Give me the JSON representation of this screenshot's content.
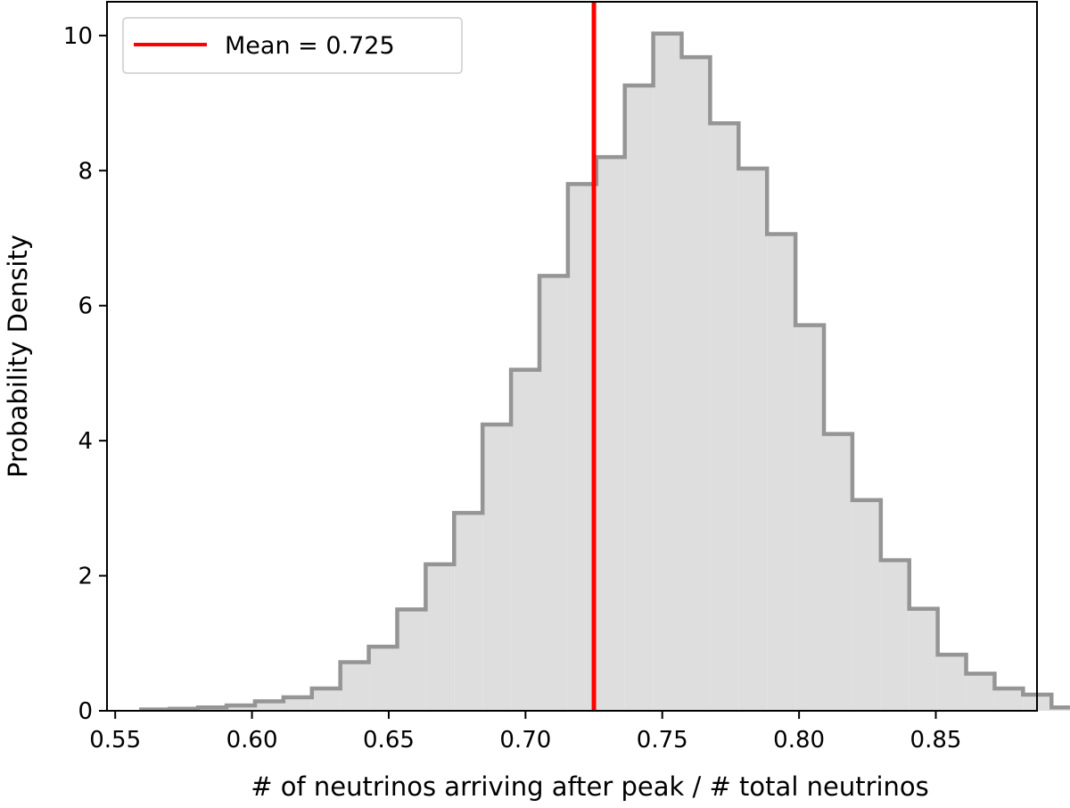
{
  "chart_data": {
    "type": "histogram",
    "title": "",
    "xlabel": "# of neutrinos arriving after peak / # total neutrinos",
    "ylabel": "Probability Density",
    "xlim": [
      0.547,
      0.887
    ],
    "ylim": [
      0,
      10.5
    ],
    "x_ticks": [
      0.55,
      0.6,
      0.65,
      0.7,
      0.75,
      0.8,
      0.85
    ],
    "x_tick_labels": [
      "0.55",
      "0.60",
      "0.65",
      "0.70",
      "0.75",
      "0.80",
      "0.85"
    ],
    "y_ticks": [
      0,
      2,
      4,
      6,
      8,
      10
    ],
    "y_tick_labels": [
      "0",
      "2",
      "4",
      "6",
      "8",
      "10"
    ],
    "bins": {
      "start": 0.5595,
      "width": 0.0104,
      "densities": [
        0.02,
        0.03,
        0.05,
        0.08,
        0.14,
        0.2,
        0.33,
        0.72,
        0.95,
        1.5,
        2.17,
        2.93,
        4.24,
        5.05,
        6.44,
        7.8,
        8.2,
        9.26,
        10.03,
        9.68,
        8.7,
        8.03,
        7.06,
        5.71,
        4.1,
        3.12,
        2.23,
        1.51,
        0.83,
        0.55,
        0.33,
        0.24,
        0.05,
        0.02
      ]
    },
    "mean_line": {
      "x": 0.725,
      "color": "#ff0000"
    },
    "legend": {
      "position": "top-left",
      "entries": [
        {
          "label": "Mean = 0.725",
          "color": "#ff0000"
        }
      ]
    },
    "grid": false,
    "colors": {
      "hist_fill": "#dedede",
      "hist_edge": "#959595",
      "mean": "#ff0000",
      "axes": "#000000"
    }
  }
}
